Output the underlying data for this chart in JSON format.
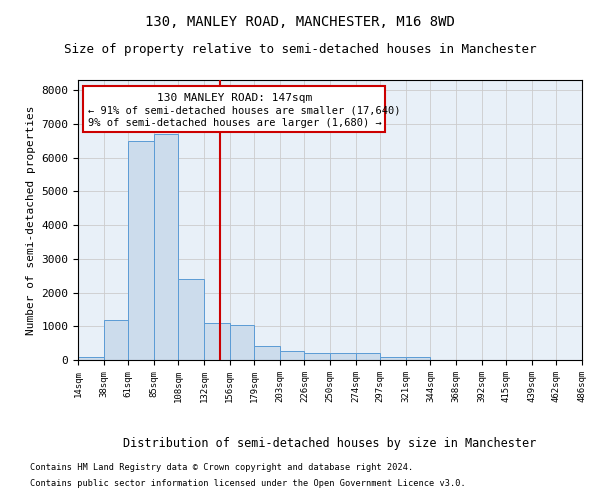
{
  "title1": "130, MANLEY ROAD, MANCHESTER, M16 8WD",
  "title2": "Size of property relative to semi-detached houses in Manchester",
  "xlabel": "Distribution of semi-detached houses by size in Manchester",
  "ylabel": "Number of semi-detached properties",
  "footnote1": "Contains HM Land Registry data © Crown copyright and database right 2024.",
  "footnote2": "Contains public sector information licensed under the Open Government Licence v3.0.",
  "property_label": "130 MANLEY ROAD: 147sqm",
  "smaller_arrow": "← 91% of semi-detached houses are smaller (17,640)",
  "larger_pct": "9% of semi-detached houses are larger (1,680) →",
  "property_size": 147,
  "bar_edges": [
    14,
    38,
    61,
    85,
    108,
    132,
    156,
    179,
    203,
    226,
    250,
    274,
    297,
    321,
    344,
    368,
    392,
    415,
    439,
    462,
    486
  ],
  "bar_heights": [
    100,
    1200,
    6500,
    6700,
    2400,
    1100,
    1050,
    420,
    280,
    200,
    200,
    200,
    100,
    100,
    0,
    0,
    0,
    0,
    0,
    0
  ],
  "bar_color": "#ccdcec",
  "bar_edge_color": "#5b9bd5",
  "vline_color": "#cc0000",
  "vline_x": 147,
  "box_color": "#cc0000",
  "ylim": [
    0,
    8300
  ],
  "yticks": [
    0,
    1000,
    2000,
    3000,
    4000,
    5000,
    6000,
    7000,
    8000
  ],
  "grid_color": "#cccccc",
  "bg_color": "#e8f0f8",
  "title1_fontsize": 10,
  "title2_fontsize": 9,
  "xlabel_fontsize": 8.5,
  "ylabel_fontsize": 8
}
